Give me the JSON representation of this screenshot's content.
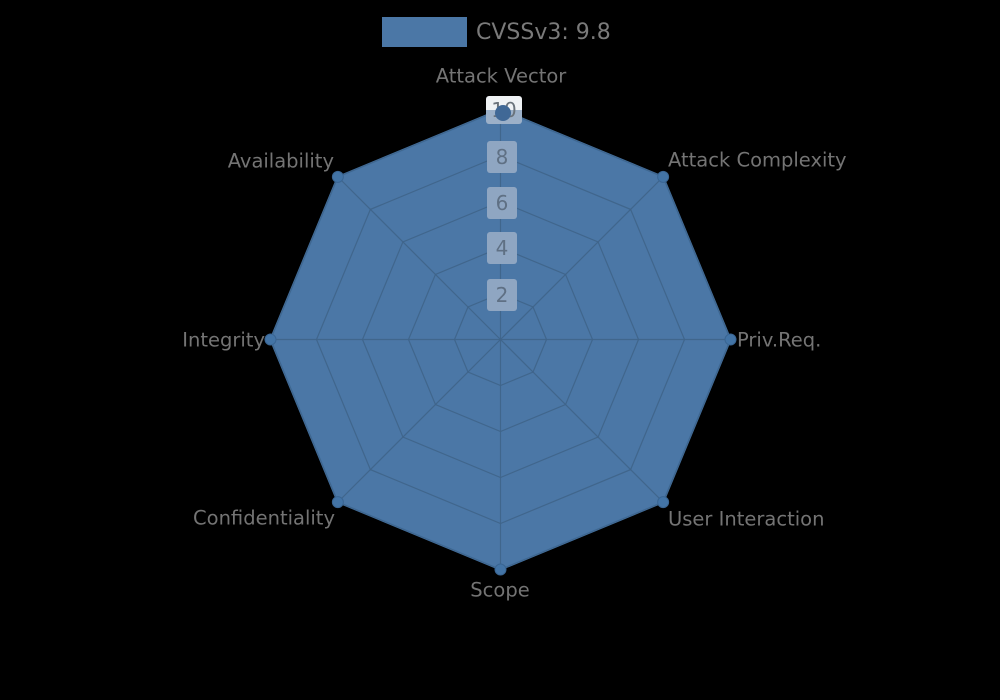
{
  "page": {
    "background": "#000000"
  },
  "legend": {
    "label": "CVSSv3: 9.8",
    "swatch_color": "#4b77a6"
  },
  "chart_data": {
    "type": "radar",
    "title": "",
    "categories": [
      "Attack Vector",
      "Attack Complexity",
      "Priv.Req.",
      "User Interaction",
      "Scope",
      "Confidentiality",
      "Integrity",
      "Availability"
    ],
    "series": [
      {
        "name": "CVSSv3: 9.8",
        "values": [
          10,
          10,
          10,
          10,
          10,
          10,
          10,
          10
        ]
      }
    ],
    "rticks": [
      2,
      4,
      6,
      8,
      10
    ],
    "rlim": [
      0,
      10
    ],
    "grid": true,
    "legend_position": "top-center",
    "colors": {
      "fill": "#4b77a6",
      "stroke": "#4576a8",
      "grid": "#3f648a",
      "marker_fill": "#4374a6",
      "marker_stroke": "#3a6592",
      "axis_label": "#747474",
      "tick_label": "#5f7084",
      "tick_box": "#8fa6c2",
      "legend_text": "#7a7a7a",
      "background": "#000000"
    }
  }
}
